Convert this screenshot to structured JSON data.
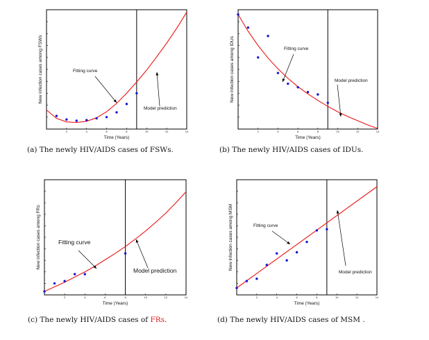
{
  "colors": {
    "curve": "#ee1111",
    "points": "#1515cc",
    "axis": "#000000",
    "caption_highlight": "#e0201a"
  },
  "chart_data": [
    {
      "type": "scatter",
      "xlabel": "Time (Years)",
      "ylabel": "New infection cases among FSWs",
      "xlim": [
        0,
        14
      ],
      "ylim": [
        0,
        10
      ],
      "xticks": [
        "2",
        "4",
        "6",
        "8",
        "10",
        "12",
        "14"
      ],
      "vline_x": 9,
      "series": [
        {
          "name": "Fitting curve",
          "kind": "line",
          "x": [
            0,
            1,
            2,
            3,
            4,
            5,
            6,
            7,
            8,
            9,
            10,
            11,
            12,
            13,
            14
          ],
          "y": [
            1.6,
            0.9,
            0.6,
            0.55,
            0.65,
            0.95,
            1.45,
            2.15,
            3.0,
            3.95,
            4.95,
            6.05,
            7.2,
            8.45,
            9.8
          ]
        },
        {
          "name": "",
          "kind": "points",
          "x": [
            1,
            2,
            3,
            4,
            5,
            6,
            7,
            8,
            9
          ],
          "y": [
            1.1,
            0.8,
            0.7,
            0.75,
            0.9,
            1.0,
            1.4,
            2.1,
            3.0
          ]
        }
      ],
      "annotations": {
        "fit": "Fitting curve",
        "pred": "Model prediction"
      },
      "caption": {
        "pre": "(a) The newly HIV/AIDS cases of FSWs.",
        "highlight": "",
        "post": ""
      }
    },
    {
      "type": "scatter",
      "xlabel": "Time (Years)",
      "ylabel": "New infection cases among IDUs",
      "xlim": [
        0,
        14
      ],
      "ylim": [
        0,
        10
      ],
      "xticks": [
        "2",
        "4",
        "6",
        "8",
        "10",
        "12",
        "14"
      ],
      "vline_x": 9,
      "series": [
        {
          "name": "Fitting curve",
          "kind": "line",
          "x": [
            0,
            1,
            2,
            3,
            4,
            5,
            6,
            7,
            8,
            9,
            10,
            11,
            12,
            13,
            14
          ],
          "y": [
            9.6,
            8.2,
            7.0,
            5.95,
            5.05,
            4.25,
            3.55,
            2.95,
            2.4,
            1.9,
            1.45,
            1.05,
            0.7,
            0.35,
            0.05
          ]
        },
        {
          "name": "",
          "kind": "points",
          "x": [
            0,
            1,
            2,
            3,
            4,
            5,
            6,
            7,
            8,
            9
          ],
          "y": [
            9.6,
            8.5,
            6.0,
            7.8,
            4.7,
            3.8,
            3.5,
            3.1,
            2.9,
            2.2
          ]
        }
      ],
      "annotations": {
        "fit": "Fitting curve",
        "pred": "Model prediction"
      },
      "caption": {
        "pre": "(b) The newly HIV/AIDS cases of IDUs.",
        "highlight": "",
        "post": ""
      }
    },
    {
      "type": "scatter",
      "xlabel": "Time (Years)",
      "ylabel": "New infection cases among FRs",
      "xlim": [
        0,
        14
      ],
      "ylim": [
        0,
        10
      ],
      "xticks": [
        "2",
        "4",
        "6",
        "8",
        "10",
        "12",
        "14"
      ],
      "vline_x": 8,
      "series": [
        {
          "name": "Fitting curve",
          "kind": "line",
          "x": [
            0,
            1,
            2,
            3,
            4,
            5,
            6,
            7,
            8,
            9,
            10,
            11,
            12,
            13,
            14
          ],
          "y": [
            0.3,
            0.7,
            1.1,
            1.55,
            2.0,
            2.5,
            3.05,
            3.6,
            4.2,
            4.85,
            5.55,
            6.3,
            7.1,
            8.0,
            8.95
          ]
        },
        {
          "name": "",
          "kind": "points",
          "x": [
            0,
            1,
            2,
            3,
            4,
            8
          ],
          "y": [
            0.3,
            1.0,
            1.2,
            1.8,
            1.8,
            3.6
          ]
        }
      ],
      "annotations": {
        "fit": "Fitting curve",
        "pred": "Model prediction"
      },
      "caption": {
        "pre": "(c) The newly HIV/AIDS cases of ",
        "highlight": "FRs",
        "post": "."
      }
    },
    {
      "type": "scatter",
      "xlabel": "Time (Years)",
      "ylabel": "New infection cases among MSM",
      "xlim": [
        0,
        14
      ],
      "ylim": [
        0,
        10
      ],
      "xticks": [
        "2",
        "4",
        "6",
        "8",
        "10",
        "12",
        "14"
      ],
      "vline_x": 9,
      "series": [
        {
          "name": "Fitting curve",
          "kind": "line",
          "x": [
            0,
            14
          ],
          "y": [
            0.6,
            9.4
          ]
        },
        {
          "name": "",
          "kind": "points",
          "x": [
            0,
            1,
            2,
            3,
            4,
            5,
            6,
            7,
            8,
            9
          ],
          "y": [
            0.6,
            1.2,
            1.4,
            2.6,
            3.6,
            3.0,
            3.7,
            4.6,
            5.6,
            5.7
          ]
        }
      ],
      "annotations": {
        "fit": "Fitting curve",
        "pred": "Model prediction"
      },
      "caption": {
        "pre": "(d) The newly HIV/AIDS cases of MSM .",
        "highlight": "",
        "post": ""
      }
    }
  ]
}
